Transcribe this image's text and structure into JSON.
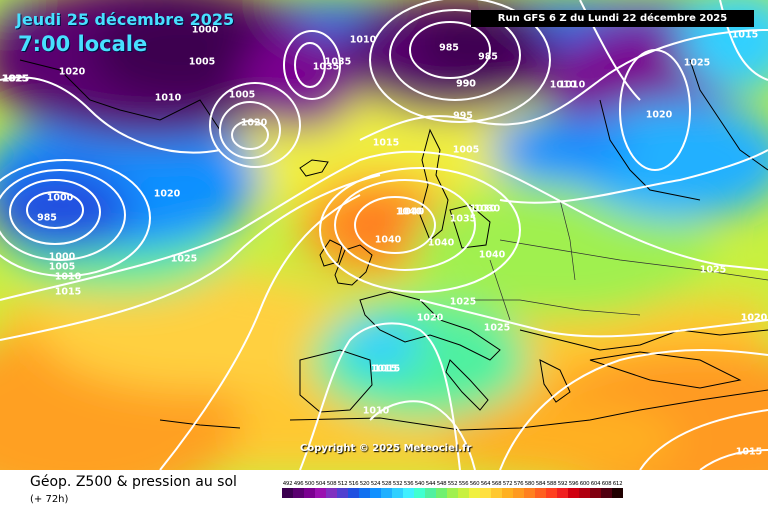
{
  "header": {
    "date": "Jeudi 25 décembre 2025",
    "time": "7:00 locale",
    "run": "Run GFS 6 Z du Lundi 22 décembre 2025"
  },
  "copyright": "Copyright © 2025 Meteociel.fr",
  "footer": {
    "product": "Géop. Z500 & pression au sol",
    "leadtime": "(+ 72h)"
  },
  "legend": {
    "values": [
      "492",
      "496",
      "500",
      "504",
      "508",
      "512",
      "516",
      "520",
      "524",
      "528",
      "532",
      "536",
      "540",
      "544",
      "548",
      "552",
      "556",
      "560",
      "564",
      "568",
      "572",
      "576",
      "580",
      "584",
      "588",
      "592",
      "596",
      "600",
      "604",
      "608",
      "612"
    ],
    "colors": [
      "#3c0050",
      "#5a0070",
      "#7a0090",
      "#9a10b0",
      "#8030c0",
      "#5040d0",
      "#2050e0",
      "#1070f0",
      "#1090ff",
      "#20b0ff",
      "#30d0ff",
      "#40f0ff",
      "#40ffd0",
      "#50f0a0",
      "#70f070",
      "#a0f050",
      "#c8f040",
      "#f0f040",
      "#ffe040",
      "#ffc830",
      "#ffb020",
      "#ff9a20",
      "#ff8020",
      "#ff6020",
      "#ff4020",
      "#f02020",
      "#d00010",
      "#b00010",
      "#800010",
      "#500010",
      "#200000"
    ]
  },
  "pressure_labels": [
    "1000",
    "1005",
    "1010",
    "1015",
    "1020",
    "1025",
    "1035",
    "1040",
    "1030",
    "985",
    "990",
    "995",
    "1005",
    "1010",
    "1015",
    "1020",
    "1025",
    "1015",
    "1020",
    "1025",
    "1010",
    "1015",
    "1020",
    "1025",
    "1040",
    "1040",
    "1040",
    "1035",
    "1030",
    "1040",
    "1025",
    "1020",
    "1025",
    "1015",
    "1010",
    "990",
    "985",
    "1000",
    "1005",
    "1010",
    "1015",
    "1020",
    "1025",
    "1000",
    "1005",
    "1010",
    "985",
    "1035",
    "1020",
    "1015"
  ]
}
